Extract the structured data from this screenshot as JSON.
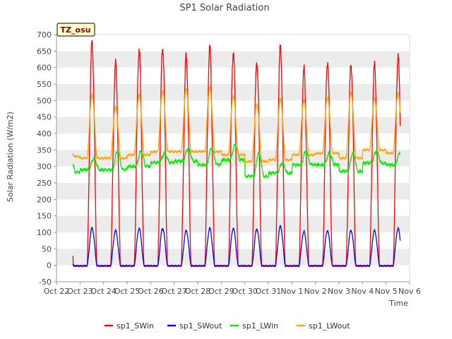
{
  "chart_data": {
    "type": "line",
    "title": "SP1 Solar Radiation",
    "xlabel": "Time",
    "ylabel": "Solar Radiation (W/m2)",
    "ylim": [
      -50,
      700
    ],
    "yticks": [
      -50,
      0,
      50,
      100,
      150,
      200,
      250,
      300,
      350,
      400,
      450,
      500,
      550,
      600,
      650,
      700
    ],
    "xlim": [
      "2024-10-22",
      "2024-11-06"
    ],
    "xticks": [
      "Oct 22",
      "Oct 23",
      "Oct 24",
      "Oct 25",
      "Oct 26",
      "Oct 27",
      "Oct 28",
      "Oct 29",
      "Oct 30",
      "Oct 31",
      "Nov 1",
      "Nov 2",
      "Nov 3",
      "Nov 4",
      "Nov 5",
      "Nov 6"
    ],
    "grid": "horizontal bands",
    "legend_position": "bottom",
    "badge": "TZ_osu",
    "days": [
      "Oct 22",
      "Oct 23",
      "Oct 24",
      "Oct 25",
      "Oct 26",
      "Oct 27",
      "Oct 28",
      "Oct 29",
      "Oct 30",
      "Oct 31",
      "Nov 1",
      "Nov 2",
      "Nov 3",
      "Nov 4",
      "Nov 5"
    ],
    "series": [
      {
        "name": "sp1_SWin",
        "color": "#ff0000",
        "daily_peak": [
          675,
          610,
          655,
          662,
          635,
          658,
          648,
          618,
          660,
          595,
          618,
          610,
          605,
          632
        ]
      },
      {
        "name": "sp1_SWout",
        "color": "#0000ff",
        "daily_peak": [
          113,
          105,
          112,
          112,
          105,
          112,
          112,
          110,
          118,
          102,
          105,
          106,
          105,
          112
        ]
      },
      {
        "name": "sp1_LWin",
        "color": "#00ee00",
        "daily_min": [
          283,
          290,
          290,
          300,
          312,
          316,
          305,
          320,
          270,
          280,
          305,
          305,
          285,
          310,
          305
        ],
        "daily_max": [
          325,
          345,
          345,
          340,
          355,
          355,
          365,
          340,
          310,
          345,
          340,
          340,
          345,
          340
        ]
      },
      {
        "name": "sp1_LWout",
        "color": "#ffa500",
        "daily_min": [
          330,
          325,
          325,
          335,
          345,
          345,
          345,
          335,
          315,
          320,
          335,
          340,
          325,
          350,
          340
        ],
        "daily_max": [
          518,
          480,
          520,
          530,
          535,
          540,
          515,
          490,
          505,
          500,
          510,
          525,
          505,
          522
        ]
      }
    ]
  }
}
